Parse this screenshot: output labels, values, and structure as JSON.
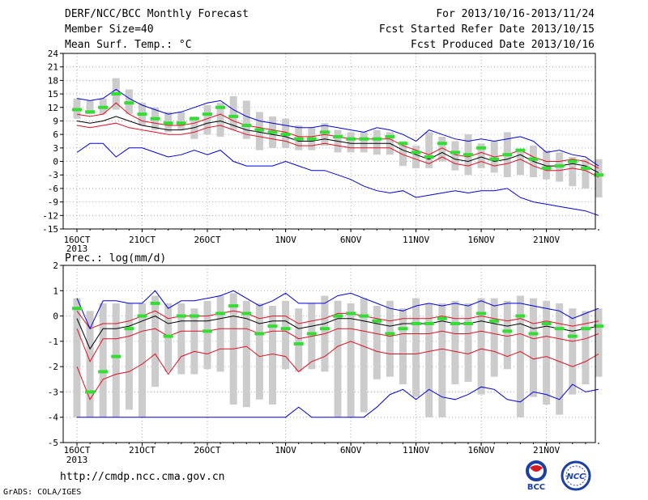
{
  "header": {
    "title": "DERF/NCC/BCC Monthly Forecast",
    "member_size": "Member Size=40",
    "variable": "Mean Surf. Temp.: °C",
    "period": "For 2013/10/16-2013/11/24",
    "start_date": "Fcst Started Refer Date 2013/10/15",
    "produced_date": "Fcst Produced Date 2013/10/16"
  },
  "footer": {
    "url": "http://cmdp.ncc.cma.gov.cn",
    "credit": "GrADS: COLA/IGES",
    "logo_bcc": "BCC",
    "logo_ncc": "NCC"
  },
  "colors": {
    "bar": "#cccccc",
    "median": "#33dd33",
    "ensemble_mean": "#000000",
    "spread": "#dd1122",
    "extreme": "#0000dd"
  },
  "chart_data": [
    {
      "type": "box-range",
      "ylabel": "Mean Surf. Temp.: °C",
      "ylim": [
        -15,
        24
      ],
      "yticks": [
        -15,
        -12,
        -9,
        -6,
        -3,
        0,
        3,
        6,
        9,
        12,
        15,
        18,
        21,
        24
      ],
      "grid": true,
      "x_ticks": [
        {
          "day": 1,
          "label": "16OCT",
          "sub": "2013"
        },
        {
          "day": 6,
          "label": "21OCT"
        },
        {
          "day": 11,
          "label": "26OCT"
        },
        {
          "day": 17,
          "label": "1NOV"
        },
        {
          "day": 22,
          "label": "6NOV"
        },
        {
          "day": 27,
          "label": "11NOV"
        },
        {
          "day": 32,
          "label": "16NOV"
        },
        {
          "day": 37,
          "label": "21NOV"
        }
      ],
      "bar_low": [
        9.5,
        10.5,
        10.5,
        11.5,
        10.5,
        8,
        7,
        6.5,
        7,
        5,
        6,
        5.5,
        7,
        5,
        2.5,
        3,
        3,
        2.5,
        2.5,
        3.5,
        2,
        2,
        2,
        1.5,
        1.5,
        -1,
        -1.5,
        -1.5,
        0,
        -2,
        -3,
        -1.5,
        -2.5,
        -3.5,
        -3,
        -3.5,
        -4,
        -4.5,
        -5.5,
        -6,
        -8
      ],
      "bar_high": [
        14,
        13.5,
        14,
        18.5,
        16,
        13,
        12,
        11,
        11,
        10,
        12.5,
        13,
        14.5,
        13.5,
        11,
        10,
        9.5,
        8,
        7.5,
        8.5,
        7,
        6.5,
        6.5,
        7,
        6.5,
        4.5,
        3.5,
        6.5,
        5.5,
        4.5,
        6,
        4,
        4.5,
        6.5,
        2.5,
        3.5,
        2.5,
        2,
        1,
        0.5,
        0.5
      ],
      "series": [
        {
          "role": "median",
          "values": [
            11.5,
            11,
            12,
            15,
            13,
            10.5,
            9.5,
            8.5,
            8.5,
            9.5,
            10.5,
            12,
            10,
            8,
            7,
            6.5,
            6,
            5,
            5,
            6.5,
            5.5,
            5,
            5,
            5,
            5.5,
            4,
            2,
            1,
            4,
            2,
            1.5,
            3,
            0.5,
            1.5,
            2.5,
            0.5,
            -1.5,
            -1,
            0,
            -1.5,
            -3
          ]
        },
        {
          "role": "mean",
          "values": [
            9,
            8.5,
            9,
            10,
            9,
            8,
            7.5,
            7,
            7,
            7.5,
            8.5,
            9,
            8,
            7,
            6.5,
            6,
            5.5,
            4.5,
            4.5,
            5,
            4.5,
            4,
            4,
            4,
            4,
            2.5,
            1.5,
            0.5,
            2,
            0.5,
            0,
            1,
            0,
            0.5,
            1.5,
            0,
            -1,
            -1,
            -0.5,
            -1,
            -2.5
          ]
        },
        {
          "role": "upper",
          "values": [
            10.5,
            10,
            10.5,
            13,
            10.5,
            9,
            8.5,
            8,
            8,
            8.5,
            9.5,
            10.5,
            9,
            8,
            7.5,
            7,
            6.5,
            5.5,
            5.5,
            6,
            5.5,
            5,
            5,
            5,
            5,
            3.5,
            2.5,
            1.5,
            3,
            1.5,
            1,
            2,
            1,
            1.5,
            2.5,
            1,
            0,
            0,
            0.5,
            0,
            -1.5
          ]
        },
        {
          "role": "lower",
          "values": [
            8,
            7.5,
            8,
            8.5,
            7.5,
            7,
            6.5,
            6,
            6,
            6.5,
            7.5,
            8,
            7,
            6,
            5.5,
            5,
            4.5,
            3.5,
            3.5,
            4,
            3.5,
            3,
            3,
            3,
            3,
            1.5,
            0.5,
            -0.5,
            1,
            -0.5,
            -1,
            0,
            -1,
            -0.5,
            0.5,
            -1,
            -2,
            -2,
            -1.5,
            -2,
            -3.5
          ]
        },
        {
          "role": "max",
          "values": [
            14,
            13.5,
            14,
            16,
            14,
            12.5,
            11.5,
            10.5,
            11,
            12,
            13,
            13.5,
            11.5,
            10,
            9,
            8.5,
            8,
            7.5,
            7.5,
            8,
            7.5,
            7,
            6.5,
            7.5,
            7,
            6,
            4.5,
            7,
            6,
            5,
            4.5,
            5,
            4.5,
            5,
            5.5,
            4.5,
            2,
            2.5,
            1.5,
            1,
            -1
          ]
        },
        {
          "role": "min",
          "values": [
            2,
            4,
            4,
            1,
            3,
            3,
            2,
            1,
            1.5,
            2.5,
            1.5,
            2.5,
            0,
            -1,
            -1,
            -1,
            0,
            -1,
            -2,
            -2,
            -3,
            -4,
            -5.5,
            -6.5,
            -7,
            -6.5,
            -8,
            -7.5,
            -7,
            -6.5,
            -7,
            -6.5,
            -6.5,
            -6,
            -8,
            -9,
            -9.5,
            -10,
            -10.5,
            -11,
            -12
          ]
        }
      ]
    },
    {
      "type": "box-range",
      "ylabel": "Prec.: log(mm/d)",
      "ylim": [
        -5,
        2
      ],
      "yticks": [
        -5,
        -4,
        -3,
        -2,
        -1,
        0,
        1,
        2
      ],
      "grid": true,
      "x_ticks": [
        {
          "day": 1,
          "label": "16OCT",
          "sub": "2013"
        },
        {
          "day": 6,
          "label": "21OCT"
        },
        {
          "day": 11,
          "label": "26OCT"
        },
        {
          "day": 17,
          "label": "1NOV"
        },
        {
          "day": 22,
          "label": "6NOV"
        },
        {
          "day": 27,
          "label": "11NOV"
        },
        {
          "day": 32,
          "label": "16NOV"
        },
        {
          "day": 37,
          "label": "21NOV"
        }
      ],
      "bar_low": [
        -4,
        -4,
        -4,
        -4,
        -3.7,
        -4,
        -2.8,
        -2.2,
        -2.3,
        -2.3,
        -2.1,
        -2.2,
        -3.5,
        -3.6,
        -3.3,
        -3.5,
        -2.1,
        -2.2,
        -2.1,
        -2.2,
        -4,
        -4,
        -3.8,
        -2.5,
        -2.4,
        -2.7,
        -3.2,
        -4,
        -4,
        -2.7,
        -2.6,
        -3.1,
        -2.4,
        -2.1,
        -4,
        -3.2,
        -3.5,
        -3.9,
        -3.1,
        -2.7,
        -2.4
      ],
      "bar_high": [
        0.7,
        0.2,
        0.5,
        0.5,
        0.5,
        0.5,
        0.8,
        0.5,
        0.5,
        0.3,
        0.6,
        0.8,
        0.9,
        0.6,
        0.5,
        0.4,
        0.6,
        0.3,
        0.5,
        0.8,
        0.6,
        0.5,
        0.7,
        0.4,
        0.6,
        0.3,
        0.7,
        0.5,
        0.5,
        0.6,
        0.5,
        0.7,
        0.7,
        0.6,
        0.8,
        0.7,
        0.6,
        0.5,
        0.3,
        0.2,
        0.3
      ],
      "series": [
        {
          "role": "median",
          "values": [
            0.3,
            -3,
            -2.2,
            -1.6,
            -0.5,
            0,
            0.5,
            -0.8,
            0,
            0,
            -0.6,
            0.1,
            0.4,
            0.1,
            -0.7,
            -0.4,
            -0.5,
            -1.1,
            -0.7,
            -0.5,
            0,
            0.1,
            0,
            -0.2,
            -0.7,
            -0.5,
            -0.3,
            -0.3,
            -0.1,
            -0.3,
            -0.3,
            0.1,
            -0.2,
            -0.6,
            0,
            -0.7,
            -0.3,
            -0.5,
            -0.8,
            -0.5,
            -0.4
          ]
        },
        {
          "role": "mean",
          "values": [
            -0.1,
            -1.3,
            -0.5,
            -0.5,
            -0.4,
            -0.2,
            0,
            -0.3,
            -0.2,
            -0.2,
            -0.2,
            -0.1,
            0,
            -0.1,
            -0.3,
            -0.2,
            -0.2,
            -0.5,
            -0.4,
            -0.3,
            -0.1,
            -0.1,
            -0.2,
            -0.3,
            -0.4,
            -0.3,
            -0.3,
            -0.3,
            -0.2,
            -0.3,
            -0.3,
            -0.2,
            -0.3,
            -0.4,
            -0.3,
            -0.5,
            -0.4,
            -0.5,
            -0.6,
            -0.5,
            -0.4
          ]
        },
        {
          "role": "upper",
          "values": [
            0.2,
            -0.5,
            -0.3,
            -0.3,
            -0.2,
            0,
            0.2,
            -0.1,
            0,
            0,
            0,
            0.1,
            0.2,
            0.1,
            -0.1,
            0,
            0,
            -0.3,
            -0.2,
            -0.1,
            0.1,
            0.1,
            0,
            -0.1,
            -0.2,
            -0.1,
            -0.1,
            -0.1,
            0,
            -0.1,
            -0.1,
            0,
            -0.1,
            -0.2,
            -0.1,
            -0.3,
            -0.2,
            -0.3,
            -0.4,
            -0.3,
            -0.2
          ]
        },
        {
          "role": "lower",
          "values": [
            -0.5,
            -1.8,
            -0.9,
            -0.9,
            -0.8,
            -0.6,
            -0.5,
            -0.8,
            -0.6,
            -0.6,
            -0.6,
            -0.5,
            -0.5,
            -0.5,
            -0.7,
            -0.6,
            -0.6,
            -0.9,
            -0.8,
            -0.7,
            -0.5,
            -0.5,
            -0.6,
            -0.7,
            -0.8,
            -0.7,
            -0.7,
            -0.7,
            -0.6,
            -0.7,
            -0.7,
            -0.6,
            -0.7,
            -0.8,
            -0.7,
            -0.9,
            -0.8,
            -0.9,
            -1,
            -0.9,
            -0.7
          ]
        },
        {
          "role": "lower2",
          "values": [
            -2,
            -3.3,
            -2.5,
            -2.3,
            -2.2,
            -1.9,
            -1.5,
            -2.3,
            -1.6,
            -1.4,
            -1.5,
            -1.3,
            -1.3,
            -1.2,
            -1.6,
            -1.5,
            -1.6,
            -2.2,
            -1.8,
            -1.6,
            -1.2,
            -1,
            -1.2,
            -1.4,
            -1.5,
            -1.5,
            -1.5,
            -1.4,
            -1.3,
            -1.4,
            -1.5,
            -1.3,
            -1.4,
            -1.6,
            -1.4,
            -1.7,
            -1.6,
            -1.8,
            -2,
            -1.8,
            -1.5
          ]
        },
        {
          "role": "max",
          "values": [
            0.7,
            -0.5,
            0.6,
            0.6,
            0.5,
            0.5,
            1,
            0.3,
            0.6,
            0.6,
            0.7,
            0.8,
            1,
            0.7,
            0.4,
            0.6,
            0.9,
            0.5,
            0.5,
            0.5,
            0.8,
            0.9,
            0.7,
            0.5,
            0.3,
            0.2,
            0.4,
            0.5,
            0.4,
            0.5,
            0.4,
            0.6,
            0.4,
            0.5,
            0.5,
            0.4,
            0.3,
            0.2,
            -0.1,
            0.1,
            0.3
          ]
        },
        {
          "role": "min",
          "values": [
            -4,
            -4,
            -4,
            -4,
            -4,
            -4,
            -4,
            -4,
            -4,
            -4,
            -4,
            -4,
            -4,
            -4,
            -4,
            -4,
            -4,
            -3.6,
            -4,
            -4,
            -4,
            -4,
            -4,
            -3.6,
            -3.1,
            -2.9,
            -3.3,
            -2.9,
            -3.2,
            -3.3,
            -3.1,
            -2.8,
            -2.9,
            -3.3,
            -3.4,
            -3,
            -3.1,
            -3.3,
            -2.7,
            -3,
            -2.9
          ]
        }
      ]
    }
  ]
}
